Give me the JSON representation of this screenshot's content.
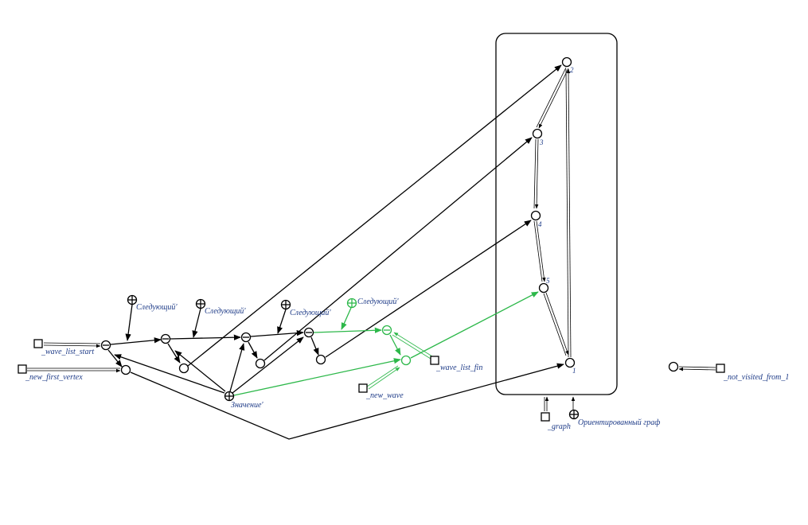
{
  "colors": {
    "black": "#000000",
    "green": "#2db84a",
    "label": "#1f3c88"
  },
  "labels": {
    "wave_list_start": "_wave_list_start",
    "new_first_vertex": "_new_first_vertex",
    "new_wave": "_new_wave",
    "wave_list_fin": "_wave_list_fin",
    "graph": "_graph",
    "oriented_graph": "Ориентированный граф",
    "not_visited_from_1": "_not_visited_from_1",
    "value": "Значение'",
    "next1": "Следующий'",
    "next2": "Следующий'",
    "next3": "Следующий'",
    "next4": "Следующий'",
    "v1": "1",
    "v2": "2",
    "v3": "3",
    "v4": "4",
    "v5": "5"
  }
}
